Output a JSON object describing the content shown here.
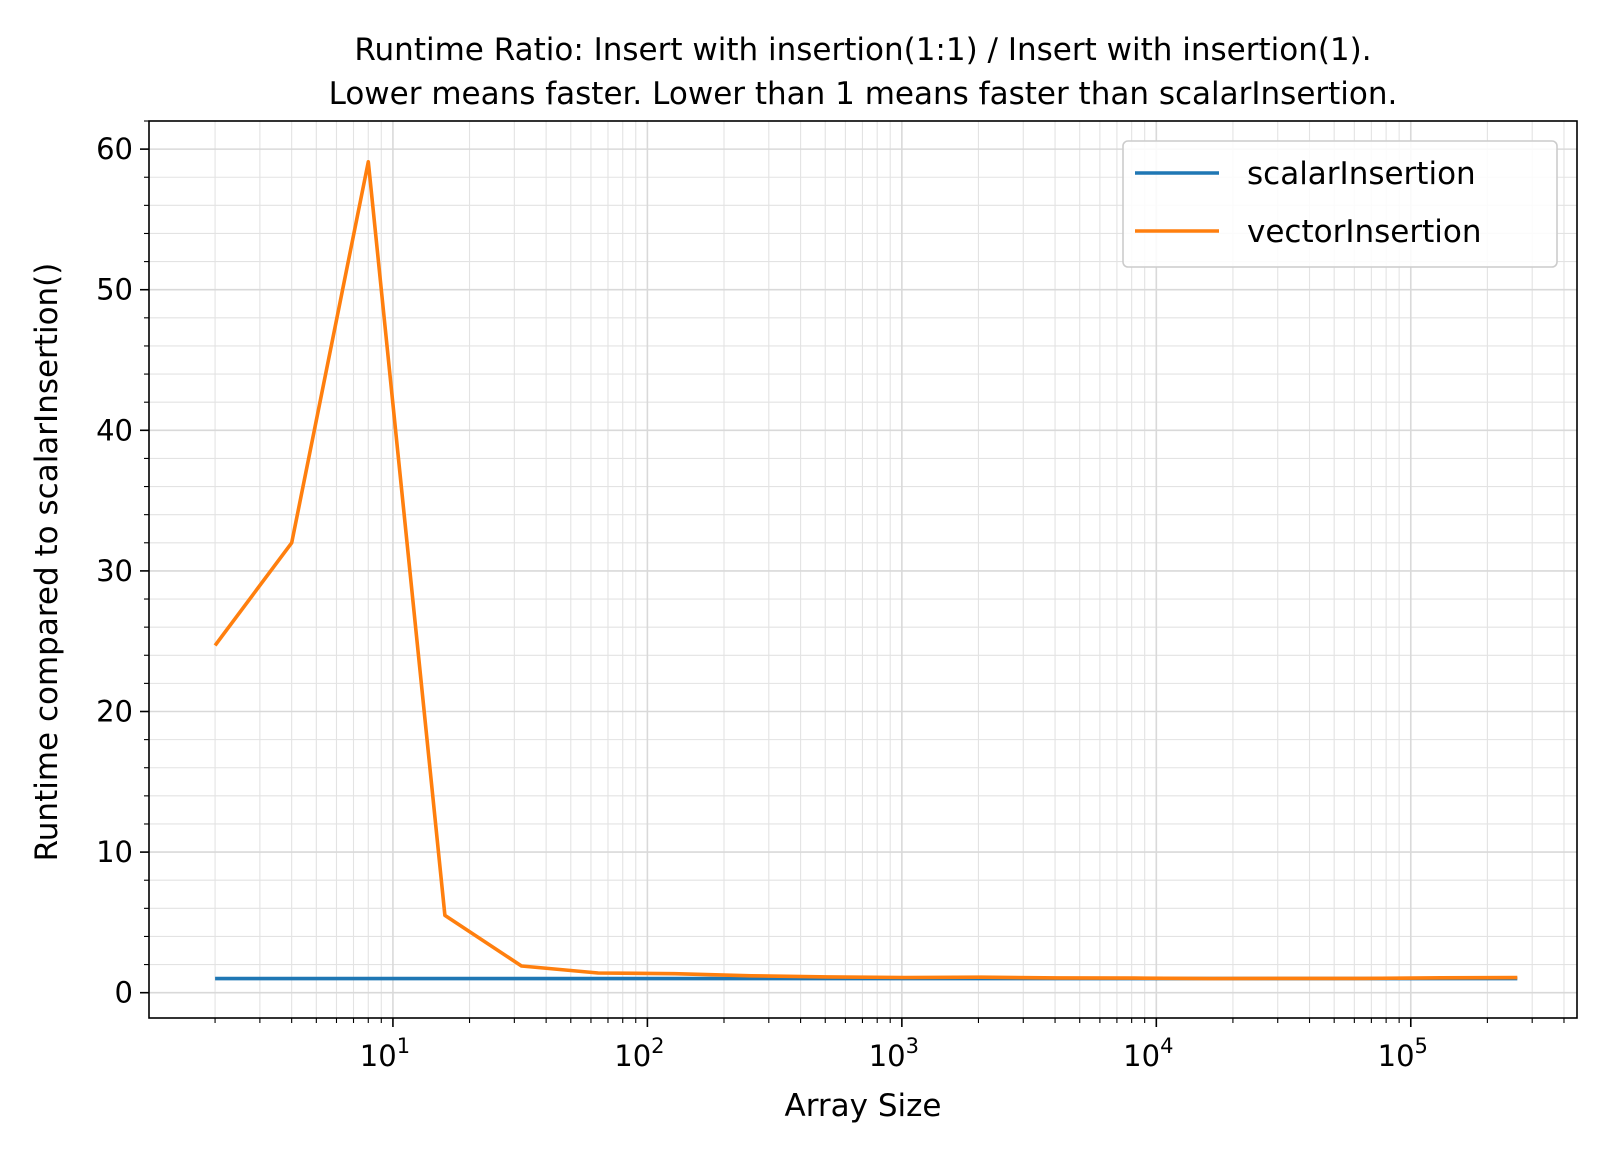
{
  "chart_data": {
    "type": "line",
    "title_lines": [
      "Runtime Ratio: Insert with insertion(1:1) / Insert with insertion(1).",
      "Lower means faster. Lower than 1 means faster than scalarInsertion."
    ],
    "xlabel": "Array Size",
    "ylabel": "Runtime compared to scalarInsertion()",
    "xscale": "log",
    "xlim": [
      1.1,
      450000
    ],
    "ylim": [
      -1.8,
      62
    ],
    "x_ticks": [
      {
        "value": 10,
        "base": "10",
        "exp": "1"
      },
      {
        "value": 100,
        "base": "10",
        "exp": "2"
      },
      {
        "value": 1000,
        "base": "10",
        "exp": "3"
      },
      {
        "value": 10000,
        "base": "10",
        "exp": "4"
      },
      {
        "value": 100000,
        "base": "10",
        "exp": "5"
      }
    ],
    "y_ticks": [
      0,
      10,
      20,
      30,
      40,
      50,
      60
    ],
    "grid": true,
    "legend_position": "top-right",
    "x": [
      2,
      4,
      8,
      16,
      32,
      64,
      128,
      256,
      512,
      1024,
      2048,
      4096,
      8192,
      16384,
      32768,
      65536,
      131072,
      262144
    ],
    "series": [
      {
        "name": "scalarInsertion",
        "color": "#1f77b4",
        "values": [
          1,
          1,
          1,
          1,
          1,
          1,
          1,
          1,
          1,
          1,
          1,
          1,
          1,
          1,
          1,
          1,
          1,
          1
        ]
      },
      {
        "name": "vectorInsertion",
        "color": "#ff7f0e",
        "values": [
          24.7,
          32.0,
          59.1,
          5.5,
          1.9,
          1.4,
          1.35,
          1.2,
          1.12,
          1.08,
          1.1,
          1.05,
          1.04,
          1.0,
          1.02,
          1.02,
          1.06,
          1.07
        ]
      }
    ]
  }
}
